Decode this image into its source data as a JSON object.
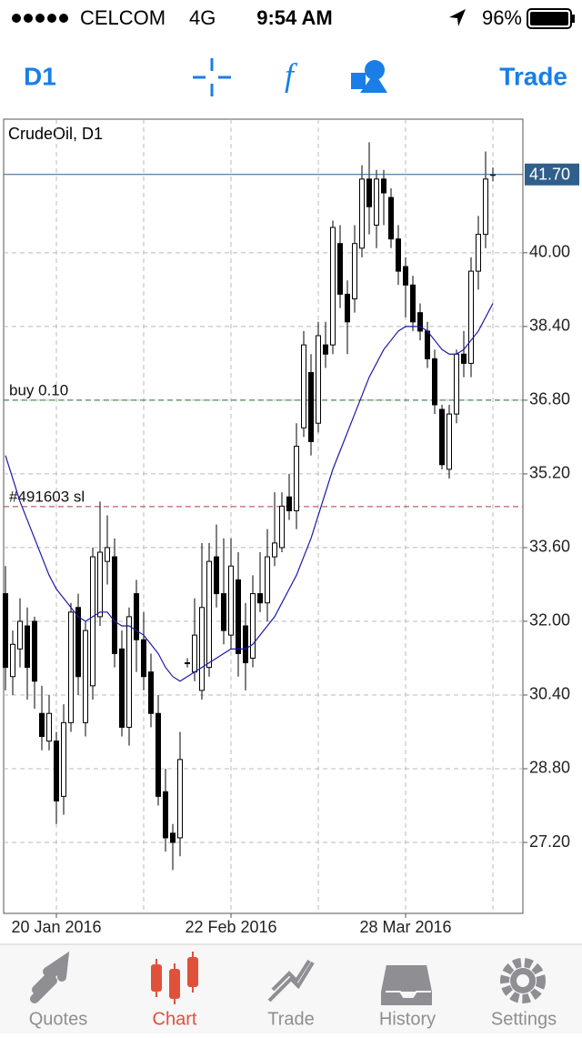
{
  "status_bar": {
    "carrier": "CELCOM",
    "network": "4G",
    "time": "9:54 AM",
    "battery": "96%"
  },
  "toolbar": {
    "timeframe": "D1",
    "trade": "Trade"
  },
  "chart_data": {
    "type": "candlestick",
    "title": "CrudeOil, D1",
    "categories": [
      null,
      null,
      null,
      null,
      null,
      null,
      null,
      "20 Jan 2016",
      null,
      null,
      null,
      null,
      null,
      null,
      null,
      null,
      null,
      null,
      null,
      null,
      null,
      null,
      null,
      null,
      null,
      null,
      null,
      null,
      null,
      null,
      null,
      "22 Feb 2016",
      null,
      null,
      null,
      null,
      null,
      null,
      null,
      null,
      null,
      null,
      null,
      null,
      null,
      null,
      null,
      null,
      null,
      null,
      null,
      null,
      null,
      null,
      null,
      "28 Mar 2016",
      null,
      null,
      null,
      null,
      null,
      null,
      null,
      null,
      null,
      null,
      null,
      null
    ],
    "open": [
      32.6,
      30.8,
      31.4,
      31.9,
      32.0,
      30.0,
      29.4,
      29.4,
      28.2,
      29.8,
      32.3,
      29.8,
      30.6,
      32.1,
      33.3,
      33.4,
      31.4,
      29.7,
      32.6,
      31.6,
      30.9,
      30.0,
      28.3,
      27.4,
      27.3,
      31.1,
      30.9,
      30.5,
      31.0,
      33.4,
      32.6,
      31.7,
      32.9,
      31.9,
      31.2,
      32.6,
      32.4,
      33.4,
      33.6,
      34.7,
      34.4,
      36.2,
      37.4,
      36.3,
      38.0,
      38.0,
      40.2,
      39.1,
      39.0,
      40.1,
      41.6,
      40.6,
      41.6,
      41.2,
      40.3,
      39.7,
      39.3,
      38.7,
      38.3,
      37.7,
      36.6,
      35.3,
      36.5,
      37.8,
      37.6,
      39.6,
      40.4,
      41.68
    ],
    "high": [
      33.2,
      31.8,
      32.5,
      32.3,
      32.1,
      30.6,
      30.4,
      29.6,
      30.2,
      32.4,
      32.6,
      32.0,
      33.6,
      34.6,
      34.3,
      33.8,
      31.8,
      32.3,
      32.9,
      32.2,
      31.3,
      30.4,
      28.8,
      27.6,
      29.6,
      31.2,
      32.5,
      33.7,
      33.7,
      34.1,
      33.8,
      33.8,
      33.5,
      32.4,
      33.0,
      33.5,
      34.0,
      34.8,
      34.8,
      35.2,
      36.3,
      38.3,
      37.8,
      38.5,
      38.5,
      40.7,
      40.6,
      39.4,
      40.6,
      41.9,
      42.4,
      41.8,
      41.8,
      41.4,
      40.6,
      39.9,
      39.5,
      38.9,
      38.5,
      37.9,
      36.7,
      36.7,
      37.9,
      38.3,
      39.9,
      40.8,
      42.2,
      41.85
    ],
    "low": [
      30.5,
      30.4,
      31.0,
      30.3,
      30.1,
      29.2,
      29.2,
      27.6,
      27.8,
      29.6,
      30.4,
      29.5,
      30.3,
      31.9,
      32.8,
      31.0,
      29.5,
      29.3,
      30.9,
      30.5,
      29.7,
      28.0,
      27.0,
      26.6,
      26.9,
      31.0,
      30.7,
      30.3,
      30.8,
      32.3,
      31.5,
      31.4,
      30.8,
      30.5,
      31.0,
      32.2,
      32.0,
      33.2,
      33.5,
      34.2,
      34.0,
      36.0,
      35.6,
      36.1,
      37.5,
      37.8,
      38.8,
      37.8,
      38.7,
      39.9,
      40.4,
      40.1,
      40.6,
      40.1,
      39.3,
      38.6,
      38.3,
      38.1,
      37.5,
      36.5,
      35.3,
      35.1,
      36.3,
      37.3,
      37.3,
      39.2,
      40.1,
      41.55
    ],
    "close": [
      31.0,
      31.5,
      32.0,
      31.0,
      30.7,
      29.5,
      30.0,
      28.1,
      29.8,
      32.2,
      30.8,
      31.8,
      33.4,
      33.5,
      33.6,
      31.3,
      29.7,
      32.1,
      31.6,
      30.8,
      30.0,
      28.2,
      27.3,
      27.2,
      29.0,
      31.1,
      31.7,
      32.3,
      33.3,
      32.6,
      31.8,
      33.2,
      31.3,
      31.1,
      32.6,
      32.4,
      33.4,
      33.7,
      34.5,
      34.4,
      35.8,
      38.0,
      35.9,
      38.2,
      37.8,
      40.55,
      39.1,
      38.5,
      40.2,
      41.6,
      41.0,
      41.6,
      41.3,
      40.3,
      39.6,
      39.3,
      38.5,
      38.3,
      37.7,
      36.7,
      35.4,
      36.5,
      37.8,
      37.6,
      39.6,
      40.4,
      41.6,
      41.7
    ],
    "ma": {
      "color": "#1a1aa6",
      "values": [
        35.6,
        35.1,
        34.6,
        34.2,
        33.8,
        33.4,
        33.0,
        32.7,
        32.5,
        32.3,
        32.1,
        32.0,
        32.1,
        32.2,
        32.2,
        32.0,
        31.9,
        31.9,
        31.8,
        31.7,
        31.5,
        31.3,
        31.0,
        30.8,
        30.7,
        30.8,
        30.9,
        31.0,
        31.1,
        31.2,
        31.3,
        31.4,
        31.4,
        31.4,
        31.5,
        31.7,
        31.9,
        32.1,
        32.4,
        32.7,
        33.0,
        33.4,
        33.8,
        34.3,
        34.8,
        35.3,
        35.7,
        36.1,
        36.5,
        36.9,
        37.3,
        37.6,
        37.9,
        38.1,
        38.3,
        38.4,
        38.4,
        38.4,
        38.3,
        38.1,
        37.9,
        37.8,
        37.8,
        37.9,
        38.1,
        38.3,
        38.6,
        38.9
      ]
    },
    "ylim": [
      25.66,
      42.9
    ],
    "yticks": [
      {
        "value": 27.2,
        "label": "27.20"
      },
      {
        "value": 28.8,
        "label": "28.80"
      },
      {
        "value": 30.4,
        "label": "30.40"
      },
      {
        "value": 32.0,
        "label": "32.00"
      },
      {
        "value": 33.6,
        "label": "33.60"
      },
      {
        "value": 35.2,
        "label": "35.20"
      },
      {
        "value": 36.8,
        "label": "36.80"
      },
      {
        "value": 38.4,
        "label": "38.40"
      },
      {
        "value": 40.0,
        "label": "40.00"
      }
    ],
    "current_price": {
      "value": 41.7,
      "label": "41.70",
      "color": "#2f5f8a"
    },
    "levels": [
      {
        "name": "buy 0.10",
        "value": 36.8,
        "color": "#1f7a2e"
      },
      {
        "name": "#491603 sl",
        "value": 34.49,
        "color": "#b03a3a"
      }
    ],
    "grid": true
  },
  "tabs": [
    "Quotes",
    "Chart",
    "Trade",
    "History",
    "Settings"
  ],
  "active_tab": 1
}
